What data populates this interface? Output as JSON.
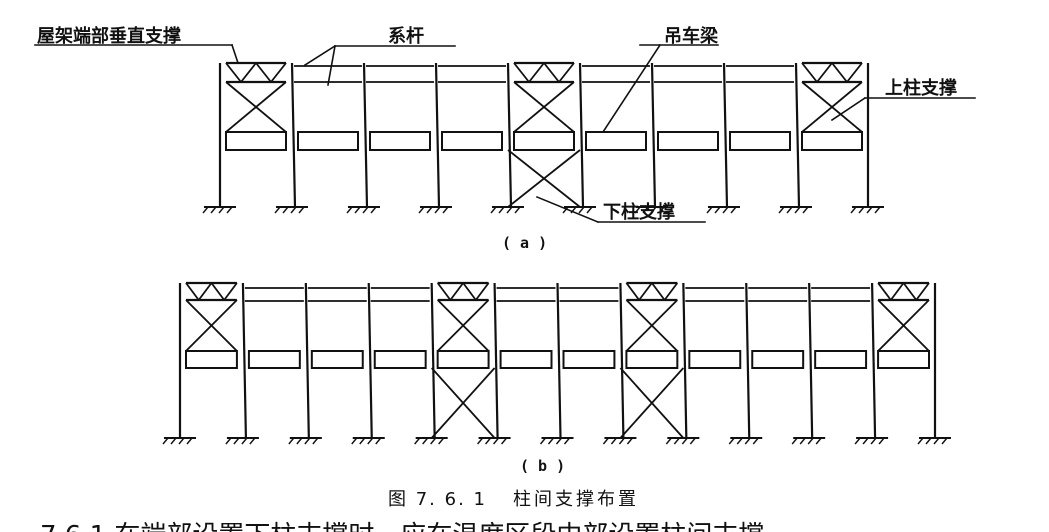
{
  "labels": {
    "roof_truss_end_bracing": "屋架端部垂直支撑",
    "tie_bar": "系杆",
    "crane_beam": "吊车梁",
    "upper_column_bracing": "上柱支撑",
    "lower_column_bracing": "下柱支撑"
  },
  "sublabels": {
    "a": "( a )",
    "b": "( b )"
  },
  "caption": {
    "number": "图 7. 6. 1",
    "title": "柱间支撑布置"
  },
  "footer_fragment": "7.6.1 在端部设置下柱支撑时，应在温度区段中部设置柱间支撑",
  "diagram_a": {
    "bays": 9,
    "upper_bracing_bays": [
      0,
      4,
      8
    ],
    "lower_bracing_bays": [
      4
    ]
  },
  "diagram_b": {
    "bays": 12,
    "upper_bracing_bays": [
      0,
      4,
      7,
      11
    ],
    "lower_bracing_bays": [
      4,
      7
    ]
  },
  "colors": {
    "ink": "#111111",
    "background": "#ffffff"
  }
}
